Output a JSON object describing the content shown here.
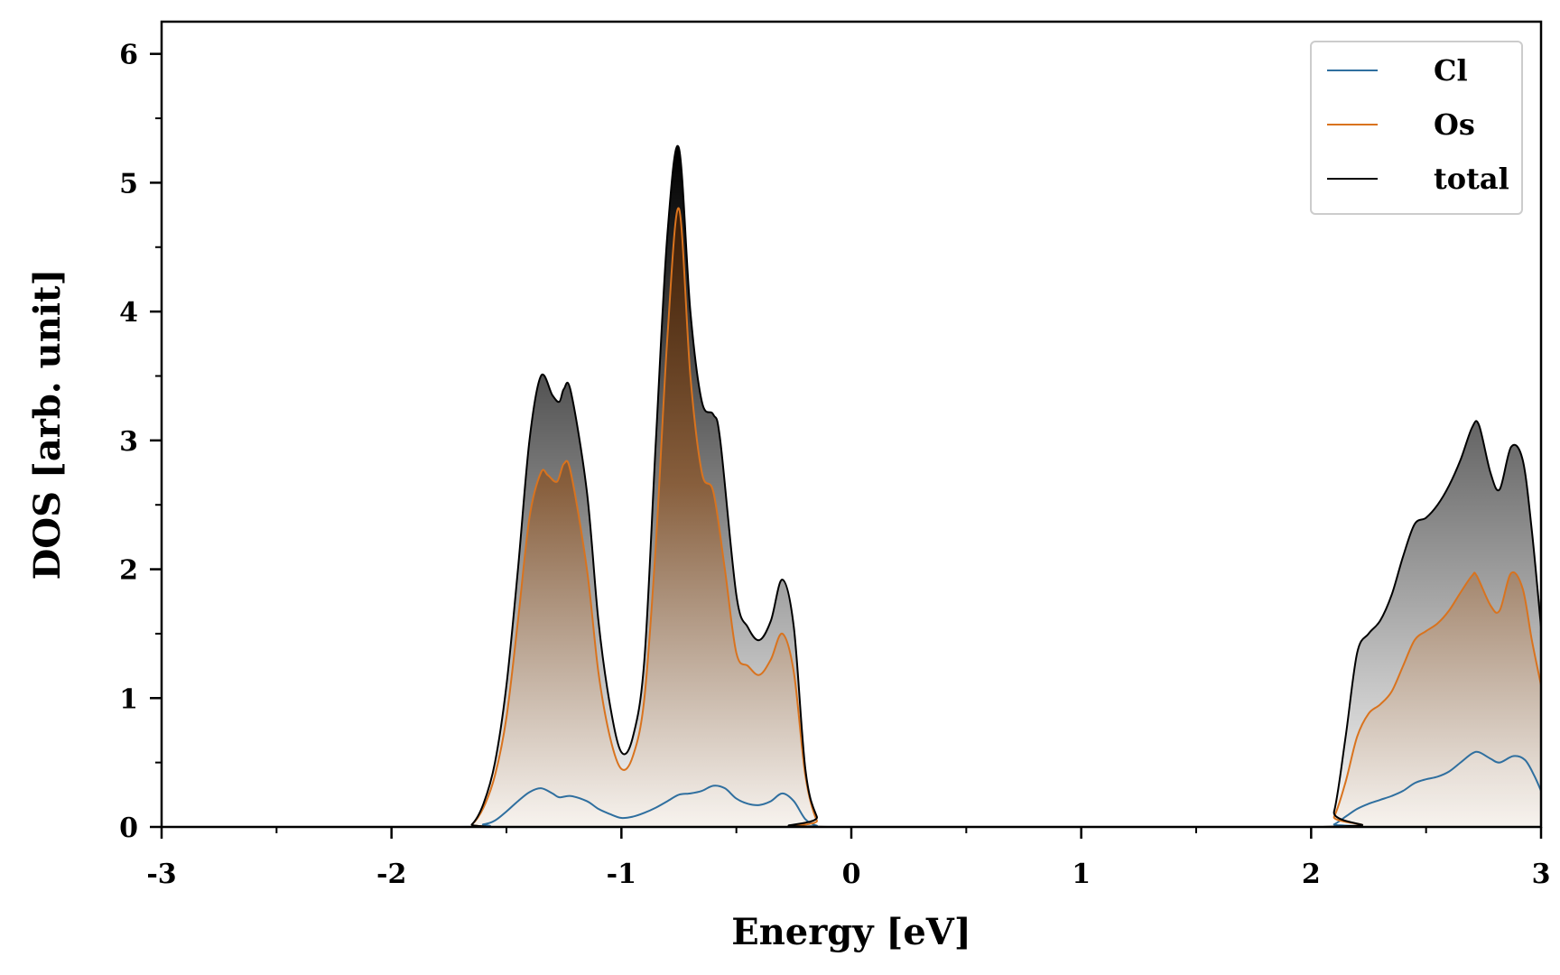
{
  "chart_data": {
    "type": "area",
    "xlabel": "Energy [eV]",
    "ylabel": "DOS [arb. unit]",
    "xlim": [
      -3,
      3
    ],
    "ylim": [
      0,
      6.25
    ],
    "xticks": [
      -3,
      -2,
      -1,
      0,
      1,
      2,
      3
    ],
    "xtick_labels": [
      "-3",
      "-2",
      "-1",
      "0",
      "1",
      "2",
      "3"
    ],
    "yticks": [
      0,
      1,
      2,
      3,
      4,
      5,
      6
    ],
    "ytick_labels": [
      "0",
      "1",
      "2",
      "3",
      "4",
      "5",
      "6"
    ],
    "grid": false,
    "legend_position": "top-right",
    "series": [
      {
        "name": "Cl",
        "color": "#2f6f9f",
        "x": [
          -3.0,
          -1.7,
          -1.6,
          -1.55,
          -1.5,
          -1.45,
          -1.4,
          -1.35,
          -1.3,
          -1.27,
          -1.22,
          -1.15,
          -1.1,
          -1.05,
          -1.0,
          -0.95,
          -0.9,
          -0.85,
          -0.8,
          -0.75,
          -0.7,
          -0.65,
          -0.6,
          -0.55,
          -0.5,
          -0.45,
          -0.4,
          -0.35,
          -0.3,
          -0.25,
          -0.2,
          -0.15,
          -0.1,
          2.05,
          2.1,
          2.15,
          2.2,
          2.25,
          2.3,
          2.35,
          2.4,
          2.45,
          2.5,
          2.55,
          2.6,
          2.65,
          2.7,
          2.73,
          2.78,
          2.82,
          2.88,
          2.93,
          2.97,
          3.0
        ],
        "y": [
          0,
          0,
          0.02,
          0.05,
          0.12,
          0.2,
          0.27,
          0.3,
          0.26,
          0.23,
          0.24,
          0.2,
          0.14,
          0.1,
          0.07,
          0.08,
          0.11,
          0.15,
          0.2,
          0.25,
          0.26,
          0.28,
          0.32,
          0.3,
          0.22,
          0.18,
          0.17,
          0.2,
          0.26,
          0.2,
          0.06,
          0.01,
          0,
          0,
          0.02,
          0.08,
          0.14,
          0.18,
          0.21,
          0.24,
          0.28,
          0.34,
          0.37,
          0.39,
          0.43,
          0.5,
          0.57,
          0.58,
          0.53,
          0.5,
          0.55,
          0.52,
          0.4,
          0.28
        ]
      },
      {
        "name": "Os",
        "color": "#d9731e",
        "x": [
          -3.0,
          -1.7,
          -1.65,
          -1.6,
          -1.55,
          -1.5,
          -1.45,
          -1.4,
          -1.35,
          -1.32,
          -1.28,
          -1.25,
          -1.22,
          -1.15,
          -1.1,
          -1.05,
          -1.0,
          -0.95,
          -0.9,
          -0.85,
          -0.8,
          -0.75,
          -0.7,
          -0.65,
          -0.6,
          -0.55,
          -0.5,
          -0.45,
          -0.4,
          -0.35,
          -0.3,
          -0.25,
          -0.2,
          -0.15,
          -0.1,
          2.05,
          2.1,
          2.15,
          2.2,
          2.25,
          2.3,
          2.35,
          2.4,
          2.45,
          2.5,
          2.55,
          2.6,
          2.65,
          2.7,
          2.72,
          2.78,
          2.82,
          2.87,
          2.92,
          2.96,
          3.0
        ],
        "y": [
          0,
          0,
          0.02,
          0.15,
          0.4,
          0.85,
          1.6,
          2.4,
          2.75,
          2.73,
          2.68,
          2.82,
          2.75,
          2.0,
          1.2,
          0.7,
          0.45,
          0.55,
          1.0,
          2.2,
          3.8,
          4.8,
          3.5,
          2.75,
          2.6,
          2.0,
          1.35,
          1.25,
          1.18,
          1.3,
          1.5,
          1.2,
          0.4,
          0.05,
          0,
          0,
          0.08,
          0.35,
          0.7,
          0.88,
          0.95,
          1.05,
          1.25,
          1.45,
          1.52,
          1.58,
          1.68,
          1.82,
          1.95,
          1.95,
          1.72,
          1.68,
          1.97,
          1.85,
          1.45,
          1.1
        ]
      },
      {
        "name": "total",
        "color": "#000000",
        "x": [
          -3.0,
          -1.7,
          -1.65,
          -1.6,
          -1.55,
          -1.5,
          -1.45,
          -1.4,
          -1.35,
          -1.3,
          -1.27,
          -1.25,
          -1.22,
          -1.15,
          -1.1,
          -1.05,
          -1.0,
          -0.95,
          -0.9,
          -0.85,
          -0.8,
          -0.75,
          -0.7,
          -0.65,
          -0.6,
          -0.57,
          -0.5,
          -0.45,
          -0.4,
          -0.35,
          -0.3,
          -0.25,
          -0.2,
          -0.15,
          -0.1,
          2.05,
          2.1,
          2.15,
          2.2,
          2.25,
          2.3,
          2.35,
          2.4,
          2.45,
          2.5,
          2.55,
          2.6,
          2.65,
          2.7,
          2.73,
          2.78,
          2.82,
          2.87,
          2.92,
          2.96,
          3.0
        ],
        "y": [
          0,
          0,
          0.02,
          0.18,
          0.5,
          1.1,
          2.0,
          3.0,
          3.5,
          3.35,
          3.3,
          3.4,
          3.38,
          2.6,
          1.6,
          0.95,
          0.58,
          0.7,
          1.3,
          3.0,
          4.6,
          5.27,
          4.0,
          3.3,
          3.2,
          3.0,
          1.8,
          1.55,
          1.45,
          1.6,
          1.92,
          1.55,
          0.45,
          0.08,
          0,
          0,
          0.12,
          0.7,
          1.35,
          1.5,
          1.6,
          1.8,
          2.1,
          2.35,
          2.4,
          2.5,
          2.65,
          2.85,
          3.1,
          3.12,
          2.75,
          2.62,
          2.95,
          2.85,
          2.3,
          1.55
        ]
      }
    ]
  }
}
